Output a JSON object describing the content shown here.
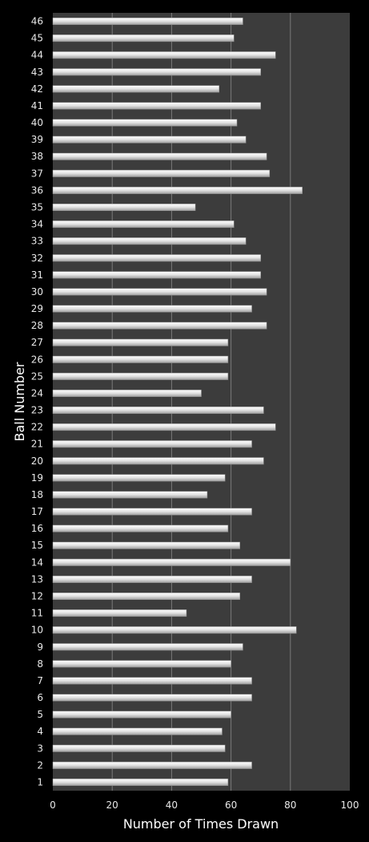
{
  "chart_data": {
    "type": "bar",
    "orientation": "horizontal",
    "xlabel": "Number of Times Drawn",
    "ylabel": "Ball Number",
    "xlim": [
      0,
      100
    ],
    "xticks": [
      0,
      20,
      40,
      60,
      80,
      100
    ],
    "grid": true,
    "categories": [
      "1",
      "2",
      "3",
      "4",
      "5",
      "6",
      "7",
      "8",
      "9",
      "10",
      "11",
      "12",
      "13",
      "14",
      "15",
      "16",
      "17",
      "18",
      "19",
      "20",
      "21",
      "22",
      "23",
      "24",
      "25",
      "26",
      "27",
      "28",
      "29",
      "30",
      "31",
      "32",
      "33",
      "34",
      "35",
      "36",
      "37",
      "38",
      "39",
      "40",
      "41",
      "42",
      "43",
      "44",
      "45",
      "46"
    ],
    "values": [
      59,
      67,
      58,
      57,
      60,
      67,
      67,
      60,
      64,
      82,
      45,
      63,
      67,
      80,
      63,
      59,
      67,
      52,
      58,
      71,
      67,
      75,
      71,
      50,
      59,
      59,
      59,
      72,
      67,
      72,
      70,
      70,
      65,
      61,
      48,
      84,
      73,
      72,
      65,
      62,
      70,
      56,
      70,
      75,
      61,
      64
    ],
    "colors": {
      "background": "#000000",
      "plot_area": "#3c3c3c",
      "bar_light": "#ffffff",
      "bar_dark": "#a8a8a8",
      "grid": "#7a7a7a",
      "text": "#ffffff"
    }
  }
}
